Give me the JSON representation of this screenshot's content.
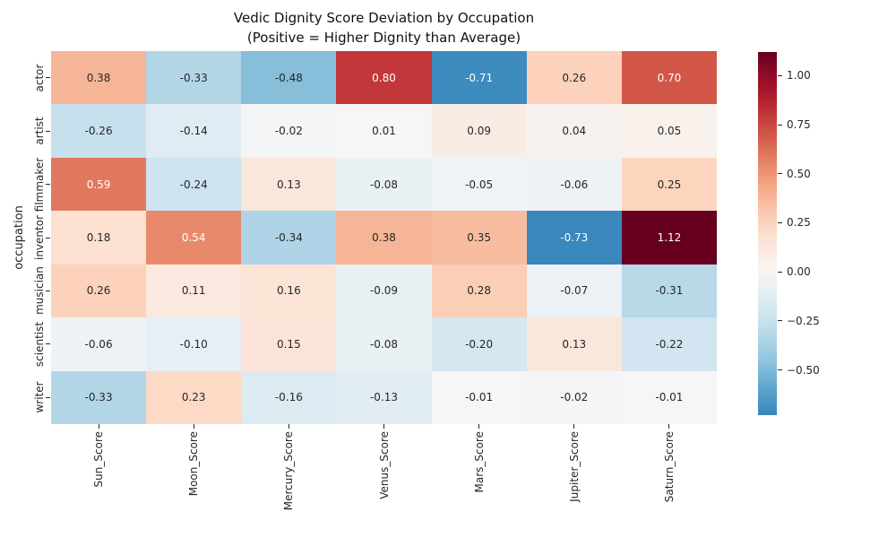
{
  "chart_data": {
    "type": "heatmap",
    "title": "Vedic Dignity Score Deviation by Occupation\n(Positive = Higher Dignity than Average)",
    "title_lines": [
      "Vedic Dignity Score Deviation by Occupation",
      "(Positive = Higher Dignity than Average)"
    ],
    "xlabel": "",
    "ylabel": "occupation",
    "rows": [
      "actor",
      "artist",
      "filmmaker",
      "inventor",
      "musician",
      "scientist",
      "writer"
    ],
    "columns": [
      "Sun_Score",
      "Moon_Score",
      "Mercury_Score",
      "Venus_Score",
      "Mars_Score",
      "Jupiter_Score",
      "Saturn_Score"
    ],
    "values": [
      [
        0.38,
        -0.33,
        -0.48,
        0.8,
        -0.71,
        0.26,
        0.7
      ],
      [
        -0.26,
        -0.14,
        -0.02,
        0.01,
        0.09,
        0.04,
        0.05
      ],
      [
        0.59,
        -0.24,
        0.13,
        -0.08,
        -0.05,
        -0.06,
        0.25
      ],
      [
        0.18,
        0.54,
        -0.34,
        0.38,
        0.35,
        -0.73,
        1.12
      ],
      [
        0.26,
        0.11,
        0.16,
        -0.09,
        0.28,
        -0.07,
        -0.31
      ],
      [
        -0.06,
        -0.1,
        0.15,
        -0.08,
        -0.2,
        0.13,
        -0.22
      ],
      [
        -0.33,
        0.23,
        -0.16,
        -0.13,
        -0.01,
        -0.02,
        -0.01
      ]
    ],
    "value_format": ".2f",
    "colormap": "RdBu_r",
    "center": 0,
    "vmin": -0.73,
    "vmax": 1.12,
    "colorbar_ticks": [
      1.0,
      0.75,
      0.5,
      0.25,
      0.0,
      -0.25,
      -0.5
    ],
    "colorbar_tick_labels": [
      "1.00",
      "0.75",
      "0.50",
      "0.25",
      "0.00",
      "−0.25",
      "−0.50"
    ],
    "colors": {
      "background": "#ffffff",
      "annotation_dark": "#262626",
      "annotation_light": "#ffffff",
      "cmap_stops": [
        "#053061",
        "#2166ac",
        "#4393c3",
        "#92c5de",
        "#d1e5f0",
        "#f7f7f7",
        "#fddbc7",
        "#f4a582",
        "#d6604d",
        "#b2182b",
        "#67001f"
      ]
    },
    "legend_position": "right-colorbar",
    "grid": false
  }
}
